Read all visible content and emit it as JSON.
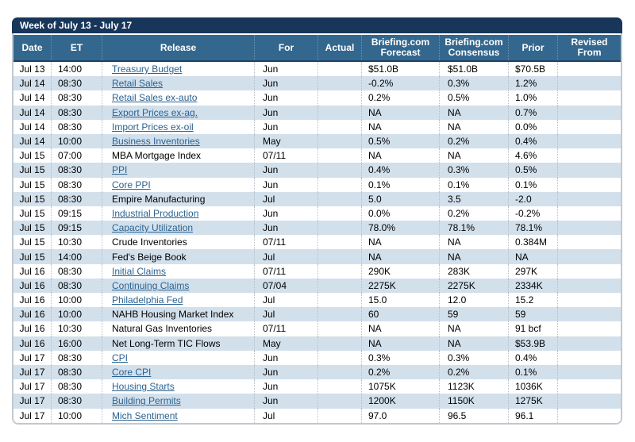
{
  "header": {
    "title": "Week of July 13 - July 17"
  },
  "colors": {
    "navy": "#17365a",
    "header": "#33678e",
    "header_separator": "#6f94b1",
    "header_bottom_line": "#1d4266",
    "alt_row": "#d2e0ec",
    "row_separator": "#b8bfc7",
    "link": "#2b6290",
    "frame": "#c2c9d0"
  },
  "table": {
    "columns": [
      "Date",
      "ET",
      "Release",
      "For",
      "Actual",
      "Briefing.com Forecast",
      "Briefing.com Consensus",
      "Prior",
      "Revised From"
    ],
    "rows": [
      {
        "date": "Jul 13",
        "et": "14:00",
        "release": "Treasury Budget",
        "link": true,
        "for": "Jun",
        "actual": "",
        "forecast": "$51.0B",
        "consensus": "$51.0B",
        "prior": "$70.5B",
        "revised": ""
      },
      {
        "date": "Jul 14",
        "et": "08:30",
        "release": "Retail Sales",
        "link": true,
        "for": "Jun",
        "actual": "",
        "forecast": "-0.2%",
        "consensus": "0.3%",
        "prior": "1.2%",
        "revised": ""
      },
      {
        "date": "Jul 14",
        "et": "08:30",
        "release": "Retail Sales ex-auto",
        "link": true,
        "for": "Jun",
        "actual": "",
        "forecast": "0.2%",
        "consensus": "0.5%",
        "prior": "1.0%",
        "revised": ""
      },
      {
        "date": "Jul 14",
        "et": "08:30",
        "release": "Export Prices ex-ag.",
        "link": true,
        "for": "Jun",
        "actual": "",
        "forecast": "NA",
        "consensus": "NA",
        "prior": "0.7%",
        "revised": ""
      },
      {
        "date": "Jul 14",
        "et": "08:30",
        "release": "Import Prices ex-oil",
        "link": true,
        "for": "Jun",
        "actual": "",
        "forecast": "NA",
        "consensus": "NA",
        "prior": "0.0%",
        "revised": ""
      },
      {
        "date": "Jul 14",
        "et": "10:00",
        "release": "Business Inventories",
        "link": true,
        "for": "May",
        "actual": "",
        "forecast": "0.5%",
        "consensus": "0.2%",
        "prior": "0.4%",
        "revised": ""
      },
      {
        "date": "Jul 15",
        "et": "07:00",
        "release": "MBA Mortgage Index",
        "link": false,
        "for": "07/11",
        "actual": "",
        "forecast": "NA",
        "consensus": "NA",
        "prior": "4.6%",
        "revised": ""
      },
      {
        "date": "Jul 15",
        "et": "08:30",
        "release": "PPI",
        "link": true,
        "for": "Jun",
        "actual": "",
        "forecast": "0.4%",
        "consensus": "0.3%",
        "prior": "0.5%",
        "revised": ""
      },
      {
        "date": "Jul 15",
        "et": "08:30",
        "release": "Core PPI",
        "link": true,
        "for": "Jun",
        "actual": "",
        "forecast": "0.1%",
        "consensus": "0.1%",
        "prior": "0.1%",
        "revised": ""
      },
      {
        "date": "Jul 15",
        "et": "08:30",
        "release": "Empire Manufacturing",
        "link": false,
        "for": "Jul",
        "actual": "",
        "forecast": "5.0",
        "consensus": "3.5",
        "prior": "-2.0",
        "revised": ""
      },
      {
        "date": "Jul 15",
        "et": "09:15",
        "release": "Industrial Production",
        "link": true,
        "for": "Jun",
        "actual": "",
        "forecast": "0.0%",
        "consensus": "0.2%",
        "prior": "-0.2%",
        "revised": ""
      },
      {
        "date": "Jul 15",
        "et": "09:15",
        "release": "Capacity Utilization",
        "link": true,
        "for": "Jun",
        "actual": "",
        "forecast": "78.0%",
        "consensus": "78.1%",
        "prior": "78.1%",
        "revised": ""
      },
      {
        "date": "Jul 15",
        "et": "10:30",
        "release": "Crude Inventories",
        "link": false,
        "for": "07/11",
        "actual": "",
        "forecast": "NA",
        "consensus": "NA",
        "prior": "0.384M",
        "revised": ""
      },
      {
        "date": "Jul 15",
        "et": "14:00",
        "release": "Fed's Beige Book",
        "link": false,
        "for": "Jul",
        "actual": "",
        "forecast": "NA",
        "consensus": "NA",
        "prior": "NA",
        "revised": ""
      },
      {
        "date": "Jul 16",
        "et": "08:30",
        "release": "Initial Claims",
        "link": true,
        "for": "07/11",
        "actual": "",
        "forecast": "290K",
        "consensus": "283K",
        "prior": "297K",
        "revised": ""
      },
      {
        "date": "Jul 16",
        "et": "08:30",
        "release": "Continuing Claims",
        "link": true,
        "for": "07/04",
        "actual": "",
        "forecast": "2275K",
        "consensus": "2275K",
        "prior": "2334K",
        "revised": ""
      },
      {
        "date": "Jul 16",
        "et": "10:00",
        "release": "Philadelphia Fed",
        "link": true,
        "for": "Jul",
        "actual": "",
        "forecast": "15.0",
        "consensus": "12.0",
        "prior": "15.2",
        "revised": ""
      },
      {
        "date": "Jul 16",
        "et": "10:00",
        "release": "NAHB Housing Market Index",
        "link": false,
        "for": "Jul",
        "actual": "",
        "forecast": "60",
        "consensus": "59",
        "prior": "59",
        "revised": ""
      },
      {
        "date": "Jul 16",
        "et": "10:30",
        "release": "Natural Gas Inventories",
        "link": false,
        "for": "07/11",
        "actual": "",
        "forecast": "NA",
        "consensus": "NA",
        "prior": "91 bcf",
        "revised": ""
      },
      {
        "date": "Jul 16",
        "et": "16:00",
        "release": "Net Long-Term TIC Flows",
        "link": false,
        "for": "May",
        "actual": "",
        "forecast": "NA",
        "consensus": "NA",
        "prior": "$53.9B",
        "revised": ""
      },
      {
        "date": "Jul 17",
        "et": "08:30",
        "release": "CPI",
        "link": true,
        "for": "Jun",
        "actual": "",
        "forecast": "0.3%",
        "consensus": "0.3%",
        "prior": "0.4%",
        "revised": ""
      },
      {
        "date": "Jul 17",
        "et": "08:30",
        "release": "Core CPI",
        "link": true,
        "for": "Jun",
        "actual": "",
        "forecast": "0.2%",
        "consensus": "0.2%",
        "prior": "0.1%",
        "revised": ""
      },
      {
        "date": "Jul 17",
        "et": "08:30",
        "release": "Housing Starts",
        "link": true,
        "for": "Jun",
        "actual": "",
        "forecast": "1075K",
        "consensus": "1123K",
        "prior": "1036K",
        "revised": ""
      },
      {
        "date": "Jul 17",
        "et": "08:30",
        "release": "Building Permits",
        "link": true,
        "for": "Jun",
        "actual": "",
        "forecast": "1200K",
        "consensus": "1150K",
        "prior": "1275K",
        "revised": ""
      },
      {
        "date": "Jul 17",
        "et": "10:00",
        "release": "Mich Sentiment",
        "link": true,
        "for": "Jul",
        "actual": "",
        "forecast": "97.0",
        "consensus": "96.5",
        "prior": "96.1",
        "revised": ""
      }
    ]
  }
}
